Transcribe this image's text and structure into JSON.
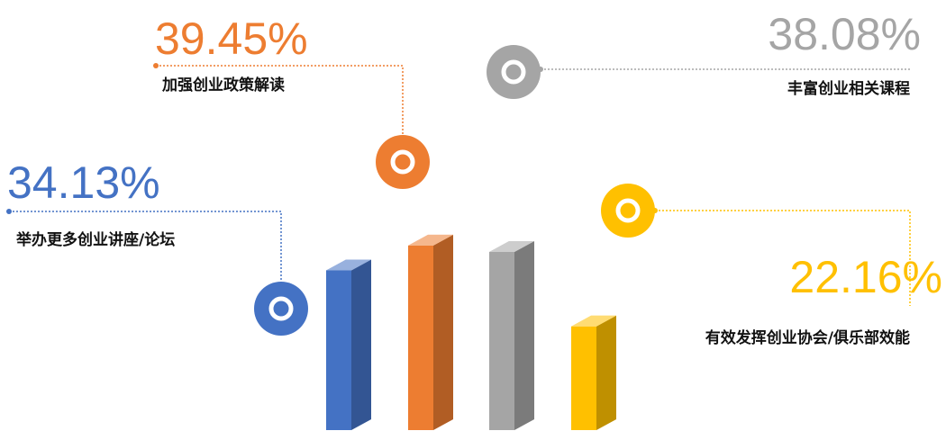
{
  "chart_data": {
    "type": "bar",
    "categories": [
      "举办更多创业讲座/论坛",
      "加强创业政策解读",
      "丰富创业相关课程",
      "有效发挥创业协会/俱乐部效能"
    ],
    "values": [
      34.13,
      39.45,
      38.08,
      22.16
    ],
    "value_labels": [
      "34.13%",
      "39.45%",
      "38.08%",
      "22.16%"
    ],
    "colors": [
      "#4472c4",
      "#ed7d31",
      "#a5a5a5",
      "#ffc000"
    ]
  }
}
